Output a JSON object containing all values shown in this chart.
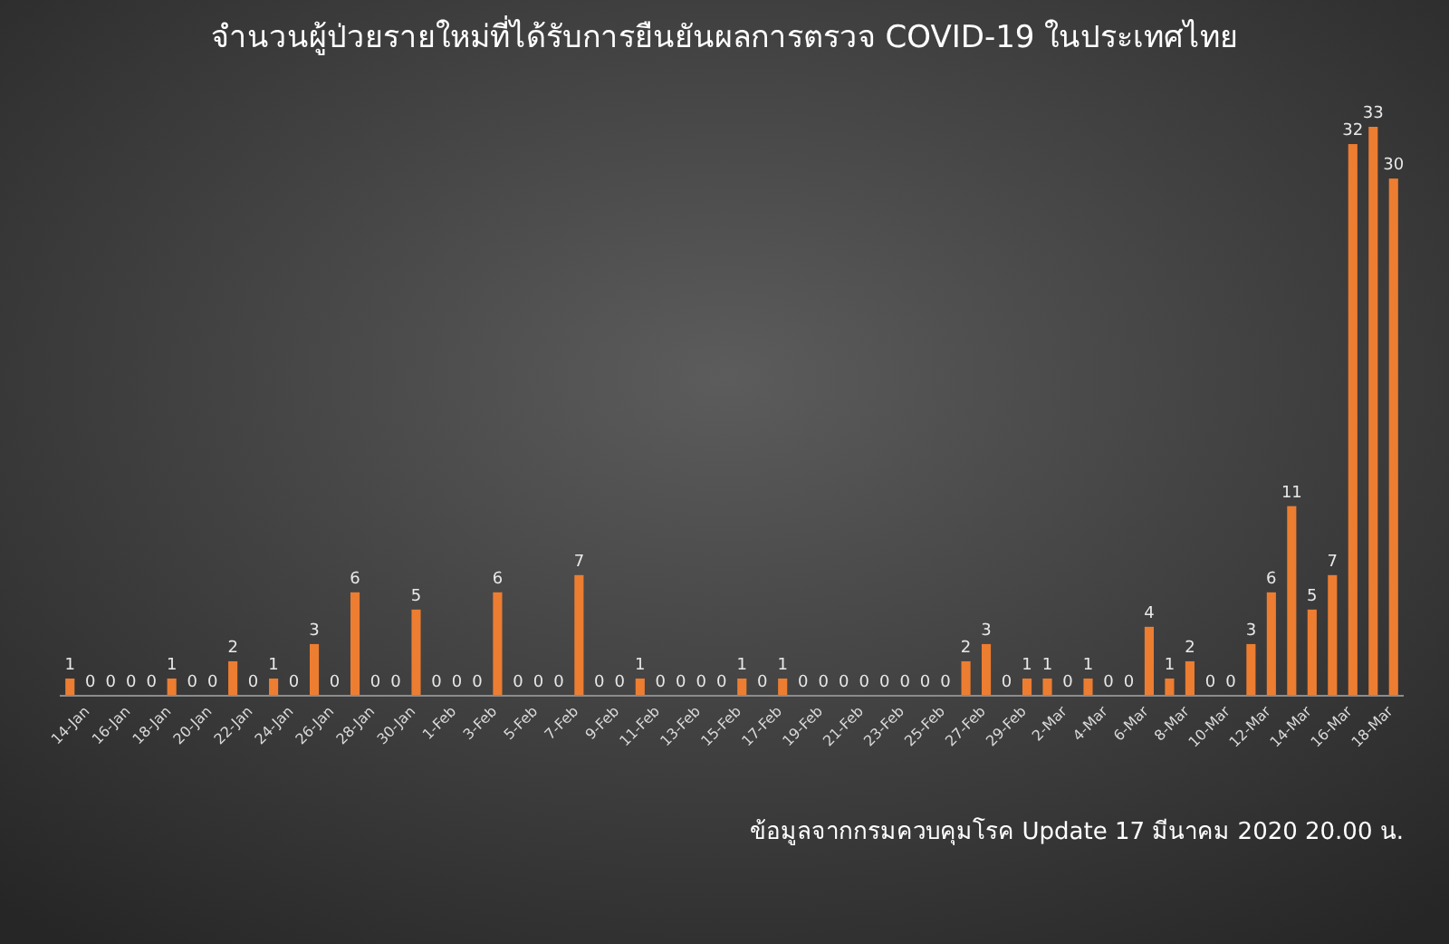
{
  "chart_data": {
    "type": "bar",
    "title": "จำนวนผู้ป่วยรายใหม่ที่ได้รับการยืนยันผลการตรวจ COVID-19 ในประเทศไทย",
    "categories": [
      null,
      "14-Jan",
      null,
      "16-Jan",
      null,
      "18-Jan",
      null,
      "20-Jan",
      null,
      "22-Jan",
      null,
      "24-Jan",
      null,
      "26-Jan",
      null,
      "28-Jan",
      null,
      "30-Jan",
      null,
      "1-Feb",
      null,
      "3-Feb",
      null,
      "5-Feb",
      null,
      "7-Feb",
      null,
      "9-Feb",
      null,
      "11-Feb",
      null,
      "13-Feb",
      null,
      "15-Feb",
      null,
      "17-Feb",
      null,
      "19-Feb",
      null,
      "21-Feb",
      null,
      "23-Feb",
      null,
      "25-Feb",
      null,
      "27-Feb",
      null,
      "29-Feb",
      null,
      "2-Mar",
      null,
      "4-Mar",
      null,
      "6-Mar",
      null,
      "8-Mar",
      null,
      "10-Mar",
      null,
      "12-Mar",
      null,
      "14-Mar",
      null,
      "16-Mar",
      null,
      "18-Mar"
    ],
    "values": [
      1,
      0,
      0,
      0,
      0,
      1,
      0,
      0,
      2,
      0,
      1,
      0,
      3,
      0,
      6,
      0,
      0,
      5,
      0,
      0,
      0,
      6,
      0,
      0,
      0,
      7,
      0,
      0,
      1,
      0,
      0,
      0,
      0,
      1,
      0,
      1,
      0,
      0,
      0,
      0,
      0,
      0,
      0,
      0,
      2,
      3,
      0,
      1,
      1,
      0,
      1,
      0,
      0,
      4,
      1,
      2,
      0,
      0,
      3,
      6,
      11,
      5,
      7,
      32,
      33,
      30
    ],
    "color": "#ed7d31",
    "data_labels": true,
    "annotations": [
      "ข้อมูลจากกรมควบคุมโรค Update 17 มีนาคม 2020 20.00 น."
    ]
  }
}
